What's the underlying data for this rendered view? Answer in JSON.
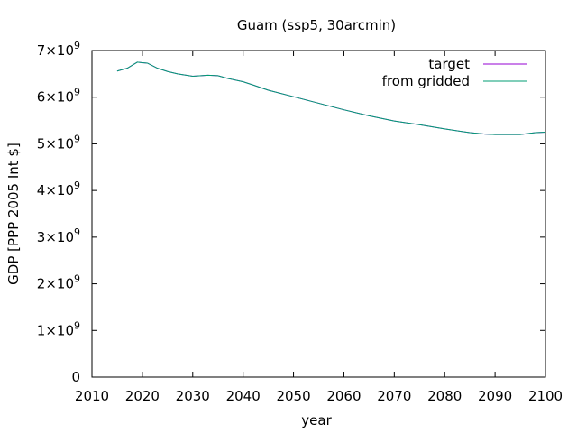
{
  "chart_data": {
    "type": "line",
    "title": "Guam (ssp5, 30arcmin)",
    "xlabel": "year",
    "ylabel": "GDP [PPP 2005 Int $]",
    "xlim": [
      2010,
      2100
    ],
    "ylim": [
      0,
      7000000000
    ],
    "x_ticks": [
      2010,
      2020,
      2030,
      2040,
      2050,
      2060,
      2070,
      2080,
      2090,
      2100
    ],
    "x_tick_labels": [
      "2010",
      "2020",
      "2030",
      "2040",
      "2050",
      "2060",
      "2070",
      "2080",
      "2090",
      "2100"
    ],
    "y_ticks": [
      {
        "value": 0,
        "mantissa": "0",
        "exp": ""
      },
      {
        "value": 1000000000,
        "mantissa": "1×10",
        "exp": "9"
      },
      {
        "value": 2000000000,
        "mantissa": "2×10",
        "exp": "9"
      },
      {
        "value": 3000000000,
        "mantissa": "3×10",
        "exp": "9"
      },
      {
        "value": 4000000000,
        "mantissa": "4×10",
        "exp": "9"
      },
      {
        "value": 5000000000,
        "mantissa": "5×10",
        "exp": "9"
      },
      {
        "value": 6000000000,
        "mantissa": "6×10",
        "exp": "9"
      },
      {
        "value": 7000000000,
        "mantissa": "7×10",
        "exp": "9"
      }
    ],
    "legend_position": "top-right",
    "grid": false,
    "series": [
      {
        "name": "target",
        "color": "#9400d3",
        "x": [
          2015,
          2017,
          2019,
          2020,
          2021,
          2023,
          2025,
          2027,
          2030,
          2033,
          2035,
          2037,
          2040,
          2042,
          2045,
          2050,
          2055,
          2060,
          2065,
          2070,
          2075,
          2080,
          2085,
          2088,
          2090,
          2095,
          2098,
          2100
        ],
        "y": [
          6560000000,
          6620000000,
          6750000000,
          6740000000,
          6730000000,
          6620000000,
          6550000000,
          6500000000,
          6450000000,
          6470000000,
          6460000000,
          6400000000,
          6330000000,
          6260000000,
          6150000000,
          6010000000,
          5870000000,
          5730000000,
          5600000000,
          5490000000,
          5410000000,
          5320000000,
          5240000000,
          5210000000,
          5200000000,
          5200000000,
          5240000000,
          5250000000
        ]
      },
      {
        "name": "from gridded",
        "color": "#009e73",
        "x": [
          2015,
          2017,
          2019,
          2020,
          2021,
          2023,
          2025,
          2027,
          2030,
          2033,
          2035,
          2037,
          2040,
          2042,
          2045,
          2050,
          2055,
          2060,
          2065,
          2070,
          2075,
          2080,
          2085,
          2088,
          2090,
          2095,
          2098,
          2100
        ],
        "y": [
          6560000000,
          6620000000,
          6750000000,
          6740000000,
          6730000000,
          6620000000,
          6550000000,
          6500000000,
          6450000000,
          6470000000,
          6460000000,
          6400000000,
          6330000000,
          6260000000,
          6150000000,
          6010000000,
          5870000000,
          5730000000,
          5600000000,
          5490000000,
          5410000000,
          5320000000,
          5240000000,
          5210000000,
          5200000000,
          5200000000,
          5240000000,
          5250000000
        ]
      }
    ]
  }
}
